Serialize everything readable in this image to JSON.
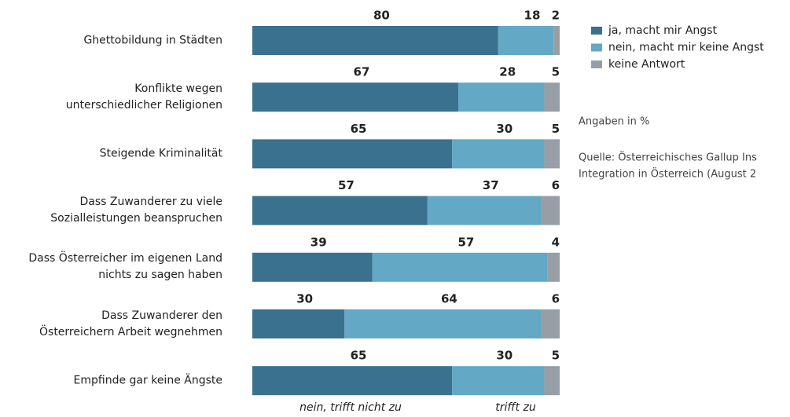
{
  "chart_data": {
    "type": "stacked_barh",
    "categories": [
      "Ghettobildung in Städten",
      "Konflikte wegen\nunterschiedlicher Religionen",
      "Steigende Kriminalität",
      "Dass Zuwanderer zu viele\nSozialleistungen beanspruchen",
      "Dass Österreicher im eigenen Land\nnichts zu sagen haben",
      "Dass Zuwanderer den\nÖsterreichern Arbeit wegnehmen",
      "Empfinde gar keine Ängste"
    ],
    "series": [
      {
        "name": "ja, macht mir Angst",
        "color": "#3a718e",
        "values": [
          80,
          67,
          65,
          57,
          39,
          30,
          65
        ]
      },
      {
        "name": "nein, macht mir keine Angst",
        "color": "#63a8c4",
        "values": [
          18,
          28,
          30,
          37,
          57,
          64,
          30
        ]
      },
      {
        "name": "keine Antwort",
        "color": "#979ea5",
        "values": [
          2,
          5,
          5,
          6,
          4,
          6,
          5
        ]
      }
    ],
    "xlim": [
      0,
      100
    ],
    "annotations": [
      "Angaben in %",
      "Quelle: Österreichisches Gallup Ins",
      "Integration in Österreich (August 2"
    ],
    "axis_labels": [
      "nein, trifft nicht zu",
      "trifft zu"
    ]
  }
}
